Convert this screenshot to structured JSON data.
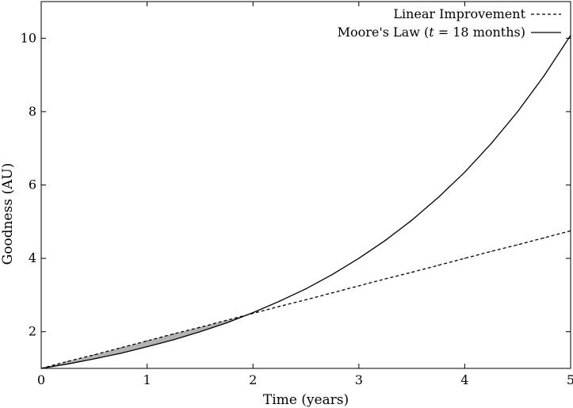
{
  "chart_data": {
    "type": "line",
    "xlabel": "Time (years)",
    "ylabel": "Goodness (AU)",
    "xlim": [
      0,
      5
    ],
    "ylim": [
      1,
      11
    ],
    "xticks": [
      0,
      1,
      2,
      3,
      4,
      5
    ],
    "yticks": [
      2,
      4,
      6,
      8,
      10
    ],
    "grid": false,
    "legend": {
      "placement": "top-right"
    },
    "legend_note": {
      "prefix": "Moore's Law (",
      "var": "t",
      "rest": " = 18 months)"
    },
    "x": [
      0,
      0.25,
      0.5,
      0.75,
      1,
      1.25,
      1.5,
      1.75,
      2,
      2.25,
      2.5,
      2.75,
      3,
      3.25,
      3.5,
      3.75,
      4,
      4.25,
      4.5,
      4.75,
      5
    ],
    "series": [
      {
        "name": "Linear Improvement",
        "style": "dashed",
        "color": "#000000",
        "values": [
          1.0,
          1.19,
          1.37,
          1.56,
          1.75,
          1.94,
          2.12,
          2.31,
          2.5,
          2.69,
          2.87,
          3.06,
          3.25,
          3.44,
          3.62,
          3.81,
          4.0,
          4.19,
          4.37,
          4.56,
          4.75
        ]
      },
      {
        "name": "Moore's Law",
        "style": "solid",
        "color": "#000000",
        "values": [
          1.0,
          1.12,
          1.26,
          1.41,
          1.59,
          1.78,
          2.0,
          2.24,
          2.52,
          2.83,
          3.17,
          3.56,
          4.0,
          4.49,
          5.04,
          5.66,
          6.35,
          7.13,
          8.0,
          8.98,
          10.08
        ]
      }
    ],
    "shaded_region": {
      "between": [
        "Linear Improvement",
        "Moore's Law"
      ],
      "x_range": [
        0,
        1.95
      ],
      "color": "#b3b3b3"
    }
  }
}
